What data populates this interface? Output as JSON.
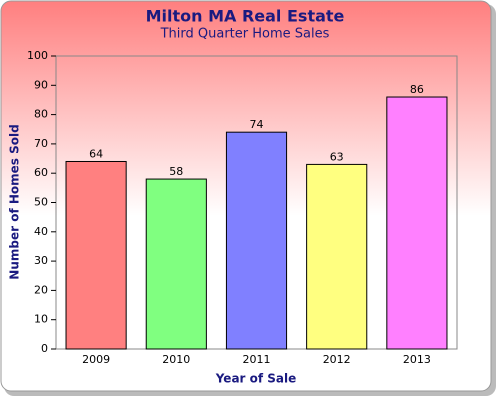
{
  "chart_data": {
    "type": "bar",
    "title": "Milton MA Real Estate",
    "subtitle": "Third Quarter Home Sales",
    "x_label": "Year of Sale",
    "y_label": "Number of Homes Sold",
    "categories": [
      "2009",
      "2010",
      "2011",
      "2012",
      "2013"
    ],
    "values": [
      64,
      58,
      74,
      63,
      86
    ],
    "colors": [
      "#ff8080",
      "#80ff80",
      "#8080ff",
      "#ffff80",
      "#ff80ff"
    ],
    "ylim": [
      0,
      100
    ],
    "yticks": [
      0,
      10,
      20,
      30,
      40,
      50,
      60,
      70,
      80,
      90,
      100
    ],
    "grid": false
  }
}
